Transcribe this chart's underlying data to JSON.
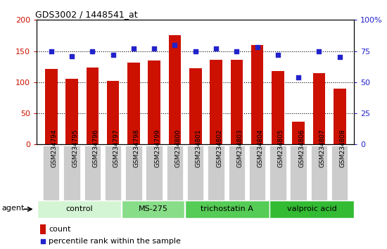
{
  "title": "GDS3002 / 1448541_at",
  "samples": [
    "GSM234794",
    "GSM234795",
    "GSM234796",
    "GSM234797",
    "GSM234798",
    "GSM234799",
    "GSM234800",
    "GSM234801",
    "GSM234802",
    "GSM234803",
    "GSM234804",
    "GSM234805",
    "GSM234806",
    "GSM234807",
    "GSM234808"
  ],
  "counts": [
    121,
    106,
    123,
    102,
    131,
    135,
    175,
    122,
    136,
    136,
    160,
    118,
    36,
    115,
    90
  ],
  "percentile": [
    75,
    71,
    75,
    72,
    77,
    77,
    80,
    75,
    77,
    75,
    78,
    72,
    54,
    75,
    70
  ],
  "bar_color": "#cc1100",
  "dot_color": "#2222cc",
  "ylim_left": [
    0,
    200
  ],
  "ylim_right": [
    0,
    100
  ],
  "yticks_left": [
    0,
    50,
    100,
    150,
    200
  ],
  "yticks_right": [
    0,
    25,
    50,
    75,
    100
  ],
  "groups": [
    {
      "label": "control",
      "start": 0,
      "end": 4,
      "color": "#d4f5d4"
    },
    {
      "label": "MS-275",
      "start": 4,
      "end": 7,
      "color": "#88dd88"
    },
    {
      "label": "trichostatin A",
      "start": 7,
      "end": 11,
      "color": "#55cc55"
    },
    {
      "label": "valproic acid",
      "start": 11,
      "end": 15,
      "color": "#33bb33"
    }
  ],
  "legend_count_label": "count",
  "legend_pct_label": "percentile rank within the sample",
  "agent_label": "agent"
}
